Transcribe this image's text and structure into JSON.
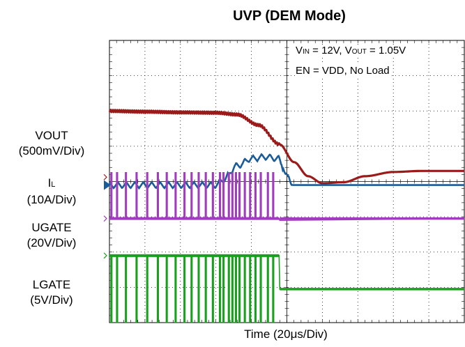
{
  "chart_data": {
    "type": "line",
    "title": "UVP (DEM Mode)",
    "xlabel": "Time (20μs/Div)",
    "grid": true,
    "divisions": {
      "x": 10,
      "y": 8
    },
    "channels": [
      {
        "id": "vout",
        "name_main": "VOUT",
        "name_sub": "",
        "scale": "(500mV/Div)",
        "color": "#9b1a1a"
      },
      {
        "id": "il",
        "name_main": "I",
        "name_sub": "L",
        "scale": "(10A/Div)",
        "color": "#1a5b9a"
      },
      {
        "id": "ugate",
        "name_main": "UGATE",
        "name_sub": "",
        "scale": "(20V/Div)",
        "color": "#a23cbf"
      },
      {
        "id": "lgate",
        "name_main": "LGATE",
        "name_sub": "",
        "scale": "(5V/Div)",
        "color": "#19a11e"
      }
    ],
    "annotations": {
      "line1": {
        "v": "V",
        "v_sub": "IN",
        "eq1": " = 12V, ",
        "v2": "V",
        "v2_sub": "OUT",
        "eq2": " = 1.05V"
      },
      "line2": "EN = VDD, No Load"
    },
    "x_unit": "div",
    "y_unit": "div",
    "series": [
      {
        "name": "VOUT",
        "x": [
          0,
          1.0,
          2.0,
          3.0,
          3.6,
          4.2,
          4.8,
          5.2,
          5.6,
          6.0,
          6.6,
          7.2,
          8.0,
          8.8,
          10.0
        ],
        "y": [
          6.0,
          5.98,
          5.96,
          5.95,
          5.9,
          5.6,
          5.05,
          4.55,
          4.15,
          3.95,
          3.98,
          4.15,
          4.27,
          4.3,
          4.3
        ]
      },
      {
        "name": "IL",
        "x": [
          0,
          2.0,
          3.0,
          3.2,
          3.6,
          4.0,
          4.4,
          4.75,
          5.0,
          5.15,
          10.0
        ],
        "y": [
          3.9,
          3.9,
          3.9,
          4.05,
          4.45,
          4.65,
          4.7,
          4.65,
          4.2,
          3.9,
          3.9
        ]
      },
      {
        "name": "UGATE",
        "x": [
          0,
          4.75,
          4.8,
          10.0
        ],
        "y": [
          2.95,
          2.95,
          2.9,
          2.95
        ]
      },
      {
        "name": "LGATE",
        "x": [
          0,
          4.75,
          4.8,
          10.0
        ],
        "y": [
          1.9,
          1.9,
          0.95,
          0.95
        ]
      }
    ]
  }
}
